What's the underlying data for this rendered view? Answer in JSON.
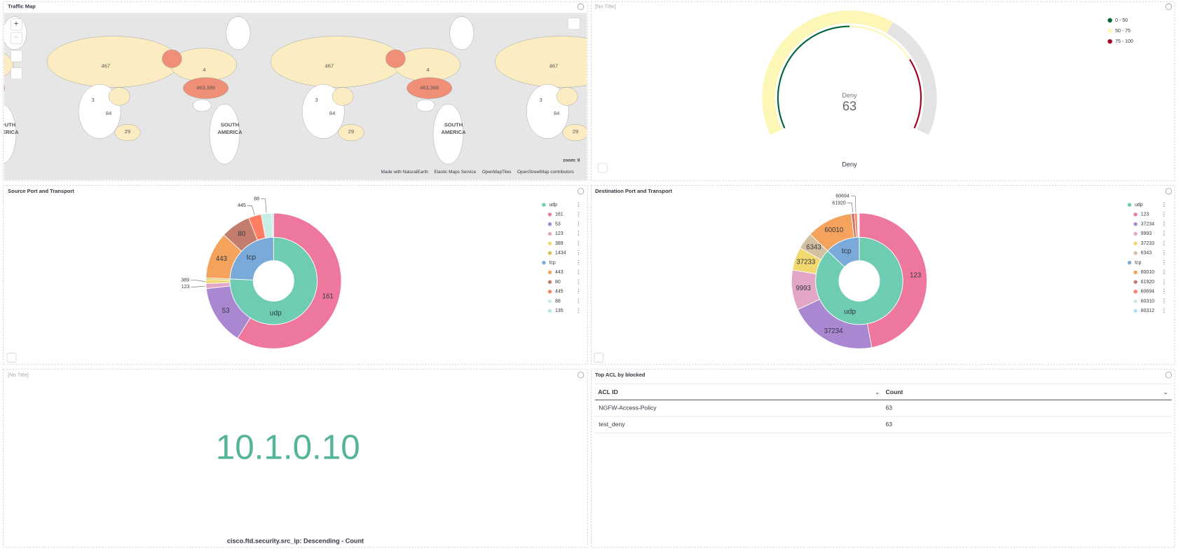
{
  "traffic_map": {
    "title": "Traffic Map",
    "region_labels": [
      "467",
      "4",
      "463,386",
      "3",
      "84",
      "29"
    ],
    "continent_label": [
      "SOUTH",
      "AMERICA"
    ],
    "zoom": "zoom: 0",
    "attribution": [
      "Made with NaturalEarth",
      "Elastic Maps Service",
      "OpenMapTiles",
      "OpenStreetMap contributors"
    ]
  },
  "gauge": {
    "title": "[No Title]",
    "label": "Deny",
    "value": 63,
    "scale": [
      0,
      100
    ],
    "track_color": "#e3e3e3",
    "ranges": [
      {
        "label": "0 - 50",
        "from": 0,
        "to": 50,
        "color": "#006837"
      },
      {
        "label": "50 - 75",
        "from": 50,
        "to": 75,
        "color": "#fcf7b6"
      },
      {
        "label": "75 - 100",
        "from": 75,
        "to": 100,
        "color": "#a50026"
      }
    ],
    "footer": "Deny"
  },
  "source_pie": {
    "title": "Source Port and Transport",
    "groups": [
      {
        "name": "udp",
        "color": "#6dccb1",
        "value": 74.5,
        "children": [
          {
            "name": "161",
            "color": "#ee789d",
            "value": 58
          },
          {
            "name": "53",
            "color": "#a987d1",
            "value": 14
          },
          {
            "name": "123",
            "color": "#e4a6c7",
            "value": 1.2
          },
          {
            "name": "389",
            "color": "#f1d86f",
            "value": 0.9
          },
          {
            "name": "1434",
            "color": "#d6bf57",
            "value": 0.4
          }
        ]
      },
      {
        "name": "tcp",
        "color": "#79aad9",
        "value": 23.9,
        "children": [
          {
            "name": "443",
            "color": "#f5a35c",
            "value": 11
          },
          {
            "name": "80",
            "color": "#c47c6c",
            "value": 7
          },
          {
            "name": "445",
            "color": "#ff7e62",
            "value": 3
          },
          {
            "name": "88",
            "color": "#c9ece4",
            "value": 2.5
          },
          {
            "name": "135",
            "color": "#b4e8e8",
            "value": 0.4
          }
        ]
      }
    ]
  },
  "destination_pie": {
    "title": "Destination Port and Transport",
    "groups": [
      {
        "name": "udp",
        "color": "#6dccb1",
        "value": 87,
        "children": [
          {
            "name": "123",
            "color": "#ee789d",
            "value": 47
          },
          {
            "name": "37234",
            "color": "#a987d1",
            "value": 21
          },
          {
            "name": "9993",
            "color": "#e4a6c7",
            "value": 9.5
          },
          {
            "name": "37233",
            "color": "#f1d86f",
            "value": 5.5
          },
          {
            "name": "6343",
            "color": "#d2c0a0",
            "value": 4
          }
        ]
      },
      {
        "name": "tcp",
        "color": "#79aad9",
        "value": 12.9,
        "children": [
          {
            "name": "60010",
            "color": "#f5a35c",
            "value": 11
          },
          {
            "name": "61920",
            "color": "#c47c6c",
            "value": 0.8
          },
          {
            "name": "60694",
            "color": "#ff7e62",
            "value": 0.6
          },
          {
            "name": "60310",
            "color": "#c9ece4",
            "value": 0.3
          },
          {
            "name": "60312",
            "color": "#b4dcf0",
            "value": 0.2
          }
        ]
      }
    ]
  },
  "metric": {
    "title": "[No Title]",
    "value": "10.1.0.10",
    "label": "cisco.ftd.security.src_ip: Descending - Count",
    "color": "#54b399"
  },
  "table": {
    "title": "Top ACL by blocked",
    "columns": [
      "ACL ID",
      "Count"
    ],
    "rows": [
      [
        "NGFW-Access-Policy",
        63
      ],
      [
        "test_deny",
        63
      ]
    ]
  }
}
